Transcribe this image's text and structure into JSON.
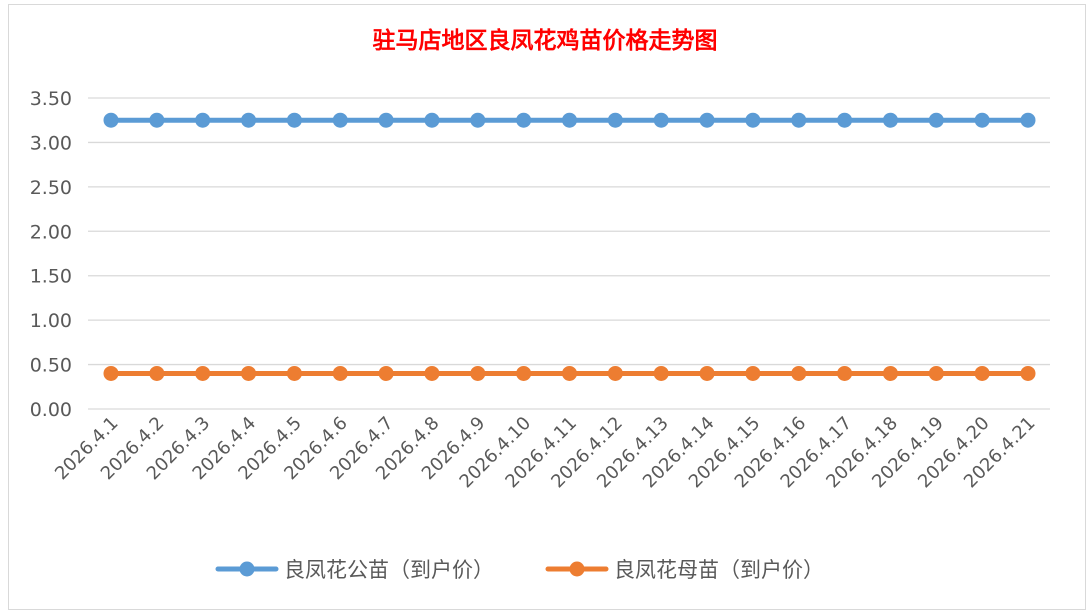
{
  "chart_data": {
    "type": "line",
    "title": "驻马店地区良凤花鸡苗价格走势图",
    "title_color": "#ff0000",
    "xlabel": "",
    "ylabel": "",
    "ylim": [
      0,
      3.5
    ],
    "yticks": [
      "0.00",
      "0.50",
      "1.00",
      "1.50",
      "2.00",
      "2.50",
      "3.00",
      "3.50"
    ],
    "grid": true,
    "legend": "bottom",
    "categories": [
      "2026.4.1",
      "2026.4.2",
      "2026.4.3",
      "2026.4.4",
      "2026.4.5",
      "2026.4.6",
      "2026.4.7",
      "2026.4.8",
      "2026.4.9",
      "2026.4.10",
      "2026.4.11",
      "2026.4.12",
      "2026.4.13",
      "2026.4.14",
      "2026.4.15",
      "2026.4.16",
      "2026.4.17",
      "2026.4.18",
      "2026.4.19",
      "2026.4.20",
      "2026.4.21"
    ],
    "series": [
      {
        "name": "良凤花公苗（到户价）",
        "color": "#5b9bd5",
        "values": [
          3.25,
          3.25,
          3.25,
          3.25,
          3.25,
          3.25,
          3.25,
          3.25,
          3.25,
          3.25,
          3.25,
          3.25,
          3.25,
          3.25,
          3.25,
          3.25,
          3.25,
          3.25,
          3.25,
          3.25,
          3.25
        ]
      },
      {
        "name": "良凤花母苗（到户价）",
        "color": "#ed7d31",
        "values": [
          0.4,
          0.4,
          0.4,
          0.4,
          0.4,
          0.4,
          0.4,
          0.4,
          0.4,
          0.4,
          0.4,
          0.4,
          0.4,
          0.4,
          0.4,
          0.4,
          0.4,
          0.4,
          0.4,
          0.4,
          0.4
        ]
      }
    ]
  }
}
